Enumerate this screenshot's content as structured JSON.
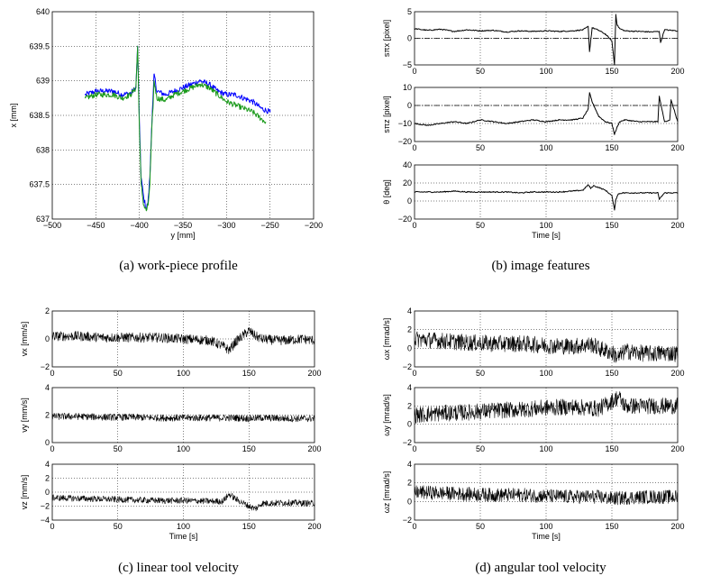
{
  "captions": [
    "(a)  work-piece profile",
    "(b)  image features",
    "(c)  linear tool velocity",
    "(d)  angular tool velocity"
  ],
  "chart_data": [
    {
      "type": "line",
      "panel": "a",
      "xlabel": "y [mm]",
      "ylabel": "x [mm]",
      "xlim": [
        -500,
        -200
      ],
      "ylim": [
        637,
        640
      ],
      "xticks": [
        "−500",
        "−450",
        "−400",
        "−350",
        "−300",
        "−250",
        "−200"
      ],
      "yticks": [
        "637",
        "637.5",
        "638",
        "638.5",
        "639",
        "639.5",
        "640"
      ],
      "grid": true,
      "series": [
        {
          "color": "#0000ff",
          "x": [
            -462,
            -450,
            -440,
            -430,
            -420,
            -410,
            -404,
            -402,
            -400,
            -398,
            -395,
            -392,
            -390,
            -388,
            -386,
            -383,
            -380,
            -370,
            -360,
            -350,
            -340,
            -330,
            -320,
            -310,
            -300,
            -290,
            -280,
            -270,
            -260,
            -250
          ],
          "y": [
            638.8,
            638.85,
            638.85,
            638.85,
            638.8,
            638.82,
            638.9,
            639.5,
            638.4,
            637.6,
            637.3,
            637.15,
            637.25,
            637.6,
            638.3,
            639.1,
            638.85,
            638.8,
            638.85,
            638.9,
            638.95,
            639.0,
            638.95,
            638.85,
            638.8,
            638.8,
            638.75,
            638.7,
            638.6,
            638.55
          ]
        },
        {
          "color": "#1a9a1a",
          "x": [
            -462,
            -450,
            -440,
            -430,
            -420,
            -410,
            -404,
            -402,
            -400,
            -398,
            -395,
            -392,
            -390,
            -388,
            -386,
            -383,
            -380,
            -370,
            -360,
            -350,
            -340,
            -330,
            -320,
            -310,
            -300,
            -290,
            -280,
            -270,
            -260,
            -255
          ],
          "y": [
            638.75,
            638.8,
            638.8,
            638.8,
            638.75,
            638.8,
            638.9,
            639.5,
            638.3,
            637.5,
            637.2,
            637.12,
            637.2,
            637.5,
            638.2,
            639.0,
            638.75,
            638.72,
            638.8,
            638.85,
            638.9,
            638.95,
            638.9,
            638.8,
            638.7,
            638.65,
            638.6,
            638.55,
            638.45,
            638.4
          ]
        }
      ]
    },
    {
      "type": "line",
      "panel": "b1",
      "ylabel": "sπx [pixel]",
      "xlim": [
        0,
        200
      ],
      "ylim": [
        -5,
        5
      ],
      "xticks": [
        "0",
        "50",
        "100",
        "150",
        "200"
      ],
      "yticks": [
        "−5",
        "0",
        "5"
      ],
      "reference_line": 0,
      "grid": true,
      "series": [
        {
          "color": "#000000",
          "x": [
            0,
            10,
            20,
            30,
            40,
            50,
            60,
            70,
            80,
            90,
            100,
            110,
            120,
            128,
            132,
            133,
            135,
            140,
            145,
            150,
            152,
            153,
            154,
            156,
            160,
            170,
            180,
            186,
            187,
            190,
            195,
            200
          ],
          "y": [
            1.8,
            1.5,
            1.7,
            1.3,
            1.6,
            1.4,
            1.5,
            1.2,
            1.4,
            1.3,
            1.4,
            1.3,
            1.4,
            1.6,
            2.2,
            -2.5,
            2.0,
            1.5,
            0.8,
            -0.5,
            -5.0,
            4.5,
            2.5,
            1.8,
            1.4,
            1.3,
            1.2,
            1.3,
            -0.8,
            1.6,
            1.5,
            1.4
          ]
        }
      ]
    },
    {
      "type": "line",
      "panel": "b2",
      "ylabel": "sπz [pixel]",
      "xlim": [
        0,
        200
      ],
      "ylim": [
        -20,
        10
      ],
      "xticks": [
        "0",
        "50",
        "100",
        "150",
        "200"
      ],
      "yticks": [
        "−20",
        "−10",
        "0",
        "10"
      ],
      "reference_line": 0,
      "grid": true,
      "series": [
        {
          "color": "#000000",
          "x": [
            0,
            10,
            20,
            30,
            40,
            50,
            60,
            70,
            80,
            90,
            100,
            110,
            120,
            128,
            132,
            133,
            135,
            140,
            145,
            150,
            152,
            154,
            156,
            160,
            170,
            180,
            185,
            186,
            190,
            194,
            195,
            200
          ],
          "y": [
            -10,
            -11,
            -10,
            -9,
            -10,
            -8,
            -9,
            -10,
            -9,
            -8,
            -9,
            -8,
            -8,
            -7,
            -2,
            7,
            2,
            -6,
            -9,
            -10,
            -16,
            -12,
            -9,
            -8,
            -9,
            -9,
            -9,
            5,
            -9,
            -8,
            3,
            -9
          ]
        }
      ]
    },
    {
      "type": "line",
      "panel": "b3",
      "ylabel": "θ [deg]",
      "xlabel": "Time [s]",
      "xlim": [
        0,
        200
      ],
      "ylim": [
        -20,
        40
      ],
      "xticks": [
        "0",
        "50",
        "100",
        "150",
        "200"
      ],
      "yticks": [
        "−20",
        "0",
        "20",
        "40"
      ],
      "grid": true,
      "series": [
        {
          "color": "#000000",
          "x": [
            0,
            10,
            20,
            30,
            40,
            50,
            60,
            70,
            80,
            90,
            100,
            110,
            120,
            128,
            132,
            134,
            136,
            140,
            145,
            150,
            152,
            153,
            155,
            158,
            165,
            180,
            185,
            186,
            190,
            195,
            200
          ],
          "y": [
            10,
            10,
            10,
            11,
            10,
            10,
            10,
            10,
            9,
            10,
            10,
            10,
            11,
            12,
            18,
            14,
            17,
            15,
            12,
            6,
            -10,
            2,
            8,
            9,
            9,
            9,
            9,
            2,
            9,
            9,
            9
          ]
        }
      ]
    },
    {
      "type": "line",
      "panel": "c1",
      "ylabel": "vx [mm/s]",
      "xlim": [
        0,
        200
      ],
      "ylim": [
        -2,
        2
      ],
      "xticks": [
        "0",
        "50",
        "100",
        "150",
        "200"
      ],
      "yticks": [
        "−2",
        "0",
        "2"
      ],
      "grid": true,
      "series": [
        {
          "color": "#000000",
          "band": 0.35,
          "x": [
            0,
            20,
            40,
            60,
            80,
            100,
            120,
            130,
            135,
            140,
            150,
            155,
            160,
            170,
            180,
            190,
            200
          ],
          "y": [
            0.2,
            0.2,
            0.1,
            0.1,
            0.1,
            0.0,
            -0.1,
            -0.5,
            -0.8,
            -0.2,
            0.6,
            0.2,
            0.0,
            -0.1,
            -0.1,
            0.0,
            -0.1
          ]
        }
      ]
    },
    {
      "type": "line",
      "panel": "c2",
      "ylabel": "vy [mm/s]",
      "xlim": [
        0,
        200
      ],
      "ylim": [
        0,
        4
      ],
      "xticks": [
        "0",
        "50",
        "100",
        "150",
        "200"
      ],
      "yticks": [
        "0",
        "2",
        "4"
      ],
      "grid": true,
      "series": [
        {
          "color": "#000000",
          "band": 0.25,
          "x": [
            0,
            20,
            40,
            60,
            80,
            100,
            120,
            140,
            150,
            160,
            180,
            200
          ],
          "y": [
            1.9,
            1.9,
            1.85,
            1.85,
            1.8,
            1.8,
            1.8,
            1.8,
            1.75,
            1.8,
            1.75,
            1.75
          ]
        }
      ]
    },
    {
      "type": "line",
      "panel": "c3",
      "ylabel": "vz [mm/s]",
      "xlabel": "Time [s]",
      "xlim": [
        0,
        200
      ],
      "ylim": [
        -4,
        4
      ],
      "xticks": [
        "0",
        "50",
        "100",
        "150",
        "200"
      ],
      "yticks": [
        "−4",
        "−2",
        "0",
        "2",
        "4"
      ],
      "grid": true,
      "series": [
        {
          "color": "#000000",
          "band": 0.45,
          "x": [
            0,
            20,
            40,
            60,
            80,
            100,
            120,
            130,
            135,
            140,
            150,
            155,
            160,
            180,
            200
          ],
          "y": [
            -0.8,
            -0.9,
            -1.0,
            -1.1,
            -1.2,
            -1.2,
            -1.3,
            -1.3,
            -0.3,
            -1.0,
            -2.0,
            -2.4,
            -1.6,
            -1.5,
            -1.6
          ]
        }
      ]
    },
    {
      "type": "line",
      "panel": "d1",
      "ylabel": "ωx [mrad/s]",
      "xlim": [
        0,
        200
      ],
      "ylim": [
        -2,
        4
      ],
      "xticks": [
        "0",
        "50",
        "100",
        "150",
        "200"
      ],
      "yticks": [
        "−2",
        "0",
        "2",
        "4"
      ],
      "grid": true,
      "series": [
        {
          "color": "#000000",
          "band": 0.9,
          "x": [
            0,
            20,
            40,
            60,
            80,
            100,
            120,
            135,
            140,
            150,
            155,
            160,
            170,
            180,
            190,
            200
          ],
          "y": [
            1.0,
            0.8,
            0.6,
            0.5,
            0.5,
            0.3,
            0.2,
            0.4,
            0.0,
            -0.5,
            -1.0,
            -0.3,
            -0.5,
            -0.6,
            -0.5,
            -0.6
          ]
        }
      ]
    },
    {
      "type": "line",
      "panel": "d2",
      "ylabel": "ωy [mrad/s]",
      "xlim": [
        0,
        200
      ],
      "ylim": [
        -2,
        4
      ],
      "xticks": [
        "0",
        "50",
        "100",
        "150",
        "200"
      ],
      "yticks": [
        "−2",
        "0",
        "2",
        "4"
      ],
      "grid": true,
      "series": [
        {
          "color": "#000000",
          "band": 0.9,
          "x": [
            0,
            20,
            40,
            60,
            80,
            100,
            120,
            140,
            150,
            155,
            160,
            180,
            200
          ],
          "y": [
            1.0,
            1.2,
            1.3,
            1.5,
            1.6,
            1.8,
            1.9,
            1.7,
            2.5,
            3.0,
            2.0,
            2.0,
            2.0
          ]
        }
      ]
    },
    {
      "type": "line",
      "panel": "d3",
      "ylabel": "ωz [mrad/s]",
      "xlabel": "Time [s]",
      "xlim": [
        0,
        200
      ],
      "ylim": [
        -2,
        4
      ],
      "xticks": [
        "0",
        "50",
        "100",
        "150",
        "200"
      ],
      "yticks": [
        "−2",
        "0",
        "2",
        "4"
      ],
      "grid": true,
      "series": [
        {
          "color": "#000000",
          "band": 0.75,
          "x": [
            0,
            20,
            40,
            60,
            80,
            100,
            120,
            140,
            150,
            160,
            180,
            200
          ],
          "y": [
            1.0,
            0.9,
            0.8,
            0.7,
            0.7,
            0.6,
            0.5,
            0.5,
            0.3,
            0.4,
            0.5,
            0.5
          ]
        }
      ]
    }
  ]
}
